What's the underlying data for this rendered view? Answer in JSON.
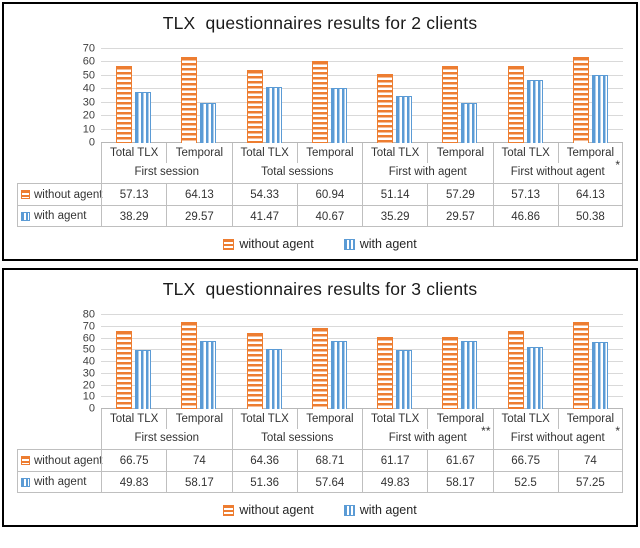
{
  "page": {
    "background": "#ffffff",
    "panel_border_color": "#000000"
  },
  "colors": {
    "without_agent": "#ED7D31",
    "with_agent": "#5B9BD5",
    "gridline": "#D9D9D9",
    "table_border": "#BFBFBF",
    "text": "#333333"
  },
  "chart_data": [
    {
      "type": "bar",
      "title": "TLX  questionnaires results for 2 clients",
      "xlabel": "",
      "ylabel": "",
      "ylim": [
        0,
        70
      ],
      "ytick_step": 10,
      "yticks": [
        0,
        10,
        20,
        30,
        40,
        50,
        60,
        70
      ],
      "grid": true,
      "legend_position": "bottom",
      "groups": [
        {
          "label": "First session",
          "span": 2
        },
        {
          "label": "Total sessions",
          "span": 2
        },
        {
          "label": "First with agent",
          "span": 2
        },
        {
          "label": "First without agent",
          "span": 2
        }
      ],
      "categories": [
        {
          "label": "Total TLX",
          "marker": ""
        },
        {
          "label": "Temporal",
          "marker": ""
        },
        {
          "label": "Total TLX",
          "marker": ""
        },
        {
          "label": "Temporal",
          "marker": ""
        },
        {
          "label": "Total TLX",
          "marker": ""
        },
        {
          "label": "Temporal",
          "marker": ""
        },
        {
          "label": "Total TLX",
          "marker": ""
        },
        {
          "label": "Temporal",
          "marker": "*"
        }
      ],
      "series": [
        {
          "name": "without agent",
          "color": "#ED7D31",
          "pattern": "horizontal-stripes",
          "values": [
            57.13,
            64.13,
            54.33,
            60.94,
            51.14,
            57.29,
            57.13,
            64.13
          ]
        },
        {
          "name": "with agent",
          "color": "#5B9BD5",
          "pattern": "vertical-stripes",
          "values": [
            38.29,
            29.57,
            41.47,
            40.67,
            35.29,
            29.57,
            46.86,
            50.38
          ]
        }
      ],
      "legend": [
        "without agent",
        "with agent"
      ]
    },
    {
      "type": "bar",
      "title": "TLX  questionnaires results for 3 clients",
      "xlabel": "",
      "ylabel": "",
      "ylim": [
        0,
        80
      ],
      "ytick_step": 10,
      "yticks": [
        0,
        10,
        20,
        30,
        40,
        50,
        60,
        70,
        80
      ],
      "grid": true,
      "legend_position": "bottom",
      "groups": [
        {
          "label": "First session",
          "span": 2
        },
        {
          "label": "Total sessions",
          "span": 2
        },
        {
          "label": "First with agent",
          "span": 2
        },
        {
          "label": "First without agent",
          "span": 2
        }
      ],
      "categories": [
        {
          "label": "Total TLX",
          "marker": ""
        },
        {
          "label": "Temporal",
          "marker": ""
        },
        {
          "label": "Total TLX",
          "marker": ""
        },
        {
          "label": "Temporal",
          "marker": ""
        },
        {
          "label": "Total TLX",
          "marker": ""
        },
        {
          "label": "Temporal",
          "marker": "**"
        },
        {
          "label": "Total TLX",
          "marker": ""
        },
        {
          "label": "Temporal",
          "marker": "*"
        }
      ],
      "series": [
        {
          "name": "without agent",
          "color": "#ED7D31",
          "pattern": "horizontal-stripes",
          "values": [
            66.75,
            74,
            64.36,
            68.71,
            61.17,
            61.67,
            66.75,
            74
          ]
        },
        {
          "name": "with agent",
          "color": "#5B9BD5",
          "pattern": "vertical-stripes",
          "values": [
            49.83,
            58.17,
            51.36,
            57.64,
            49.83,
            58.17,
            52.5,
            57.25
          ]
        }
      ],
      "legend": [
        "without agent",
        "with agent"
      ]
    }
  ]
}
